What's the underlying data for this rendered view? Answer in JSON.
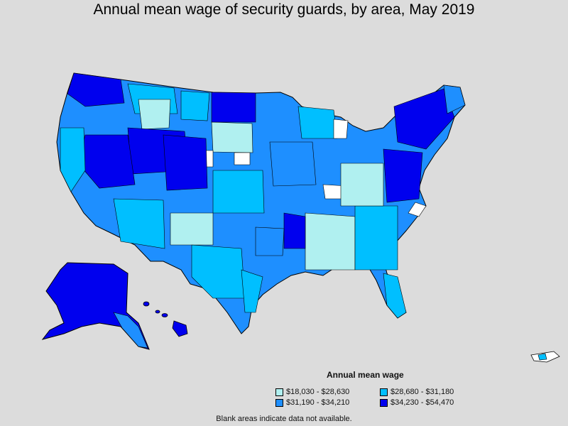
{
  "title": "Annual mean wage of security guards, by area, May 2019",
  "legend": {
    "title": "Annual mean wage",
    "items": [
      {
        "label": "$18,030 - $28,630",
        "color": "#b0f0f0"
      },
      {
        "label": "$28,680 - $31,180",
        "color": "#00bfff"
      },
      {
        "label": "$31,190 - $34,210",
        "color": "#1e8fff"
      },
      {
        "label": "$34,230 - $54,470",
        "color": "#0000ee"
      }
    ]
  },
  "note": "Blank areas indicate data not available."
}
